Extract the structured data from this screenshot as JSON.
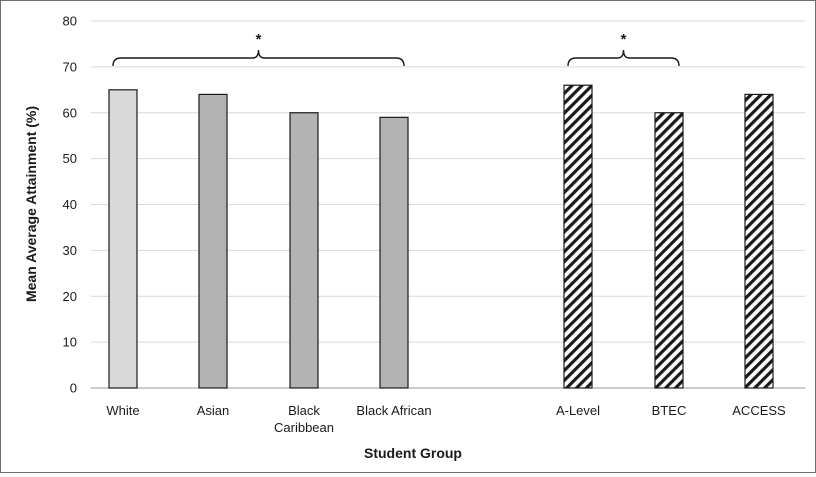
{
  "chart_data": {
    "type": "bar",
    "title": "",
    "xlabel": "Student Group",
    "ylabel": "Mean Average Attainment (%)",
    "ylim": [
      0,
      80
    ],
    "yticks": [
      0,
      10,
      20,
      30,
      40,
      50,
      60,
      70,
      80
    ],
    "grid": true,
    "categories": [
      "White",
      "Asian",
      "Black Caribbean",
      "Black African",
      "A-Level",
      "BTEC",
      "ACCESS"
    ],
    "category_lines": [
      [
        "White"
      ],
      [
        "Asian"
      ],
      [
        "Black",
        "Caribbean"
      ],
      [
        "Black African"
      ],
      [
        "A-Level"
      ],
      [
        "BTEC"
      ],
      [
        "ACCESS"
      ]
    ],
    "values": [
      65,
      64,
      60,
      59,
      66,
      60,
      64
    ],
    "bar_styles": [
      "light-gray",
      "gray",
      "gray",
      "gray",
      "diagonal-hatch",
      "diagonal-hatch",
      "diagonal-hatch"
    ],
    "colors": {
      "light_gray": "#d9d9d9",
      "gray": "#b3b3b3",
      "hatch": "#1a1a1a",
      "grid": "#d9d9d9"
    },
    "annotations": [
      {
        "label": "*",
        "from": "White",
        "to": "Black African"
      },
      {
        "label": "*",
        "from": "A-Level",
        "to": "BTEC"
      }
    ]
  }
}
